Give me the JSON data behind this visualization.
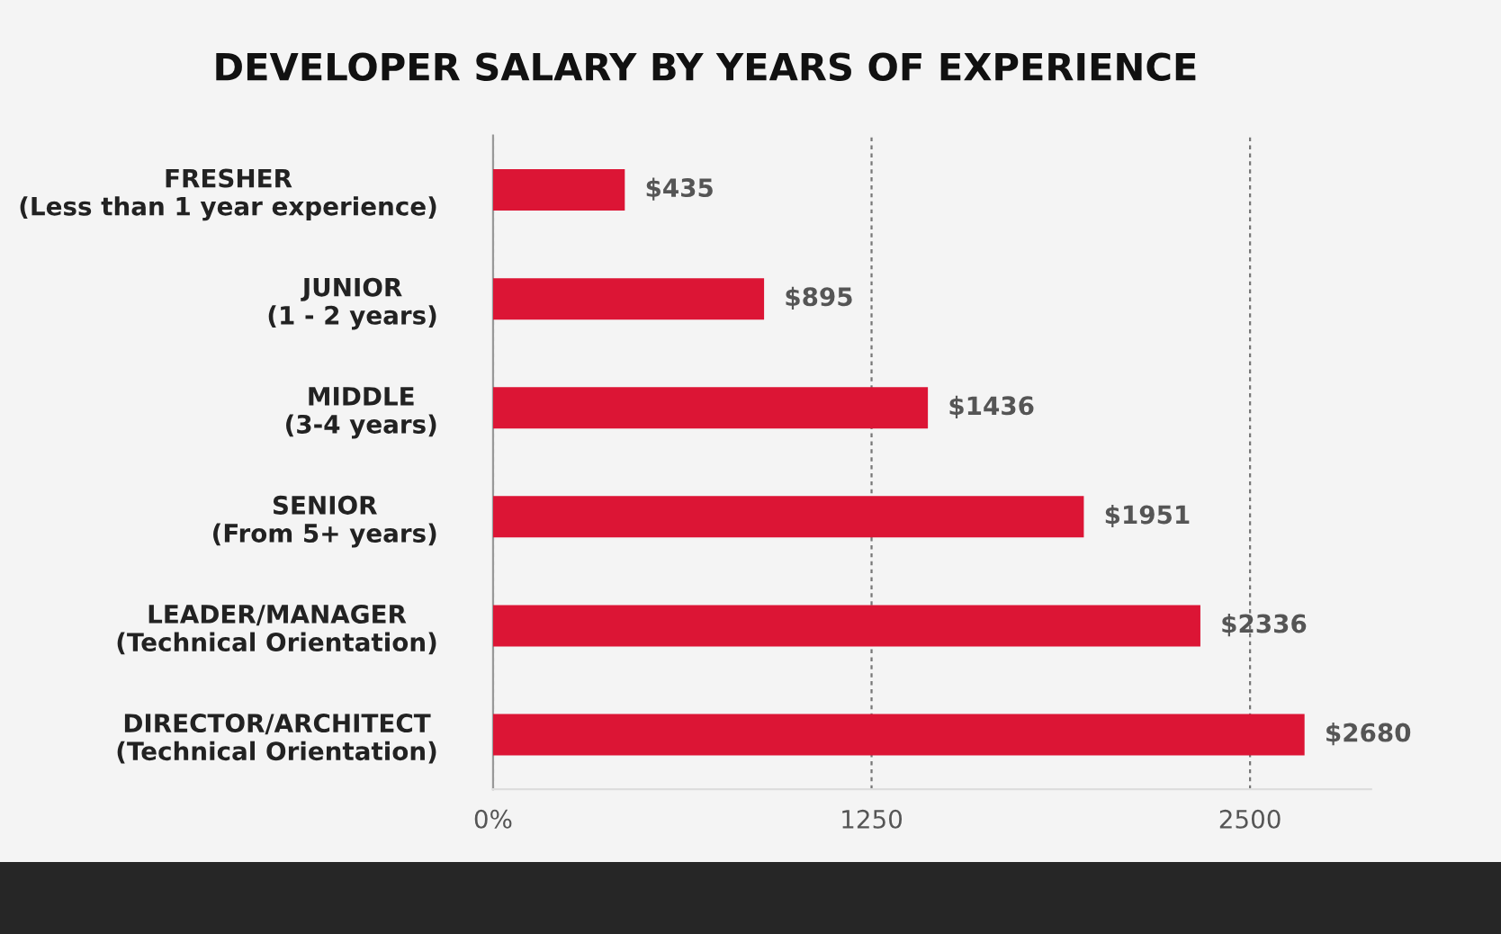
{
  "chart_data": {
    "type": "bar",
    "orientation": "horizontal",
    "title": "DEVELOPER SALARY BY YEARS OF EXPERIENCE",
    "categories": [
      "FRESHER\n(Less than 1 year experience)",
      "JUNIOR\n(1 - 2 years)",
      "MIDDLE\n(3-4 years)",
      "SENIOR\n(From 5+ years)",
      "LEADER/MANAGER\n(Technical Orientation)",
      "DIRECTOR/ARCHITECT\n(Technical Orientation)"
    ],
    "values": [
      435,
      895,
      1436,
      1951,
      2336,
      2680
    ],
    "value_labels": [
      "$435",
      "$895",
      "$1436",
      "$1951",
      "$2336",
      "$2680"
    ],
    "color": "#dc1535",
    "xlim": [
      0,
      2900
    ],
    "xticks": [
      {
        "value": 0,
        "label": "0%"
      },
      1250,
      2500
    ],
    "grid": "x"
  }
}
